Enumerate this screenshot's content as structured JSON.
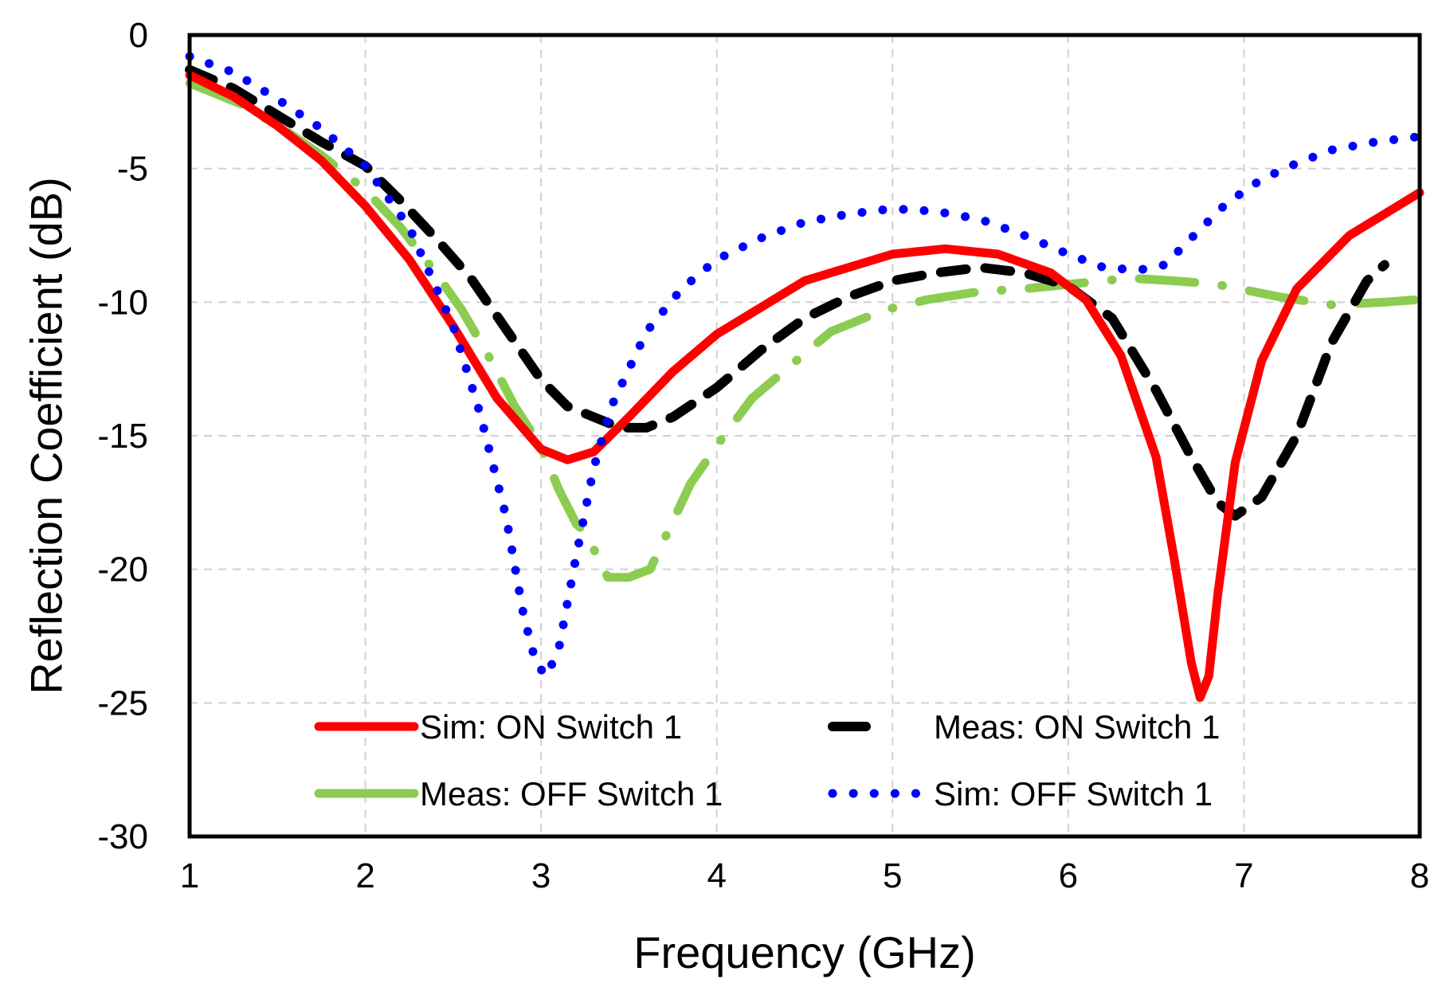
{
  "chart_data": {
    "type": "line",
    "xlabel": "Frequency (GHz)",
    "ylabel": "Reflection Coefficient (dB)",
    "xlim": [
      1,
      8
    ],
    "ylim": [
      -30,
      0
    ],
    "xticks": [
      1,
      2,
      3,
      4,
      5,
      6,
      7,
      8
    ],
    "yticks": [
      0,
      -5,
      -10,
      -15,
      -20,
      -25,
      -30
    ],
    "grid": true,
    "legend_position": "bottom-inside",
    "series": [
      {
        "name": "Sim: ON Switch 1",
        "color": "#ff0000",
        "style": "solid",
        "x": [
          1,
          1.25,
          1.5,
          1.75,
          2,
          2.25,
          2.5,
          2.75,
          3,
          3.15,
          3.3,
          3.5,
          3.75,
          4,
          4.5,
          5,
          5.3,
          5.6,
          5.9,
          6.1,
          6.3,
          6.5,
          6.6,
          6.7,
          6.75,
          6.8,
          6.85,
          6.95,
          7.1,
          7.3,
          7.6,
          8
        ],
        "y": [
          -1.5,
          -2.3,
          -3.4,
          -4.7,
          -6.4,
          -8.4,
          -10.9,
          -13.6,
          -15.5,
          -15.9,
          -15.6,
          -14.3,
          -12.6,
          -11.2,
          -9.2,
          -8.2,
          -8.0,
          -8.2,
          -8.9,
          -9.9,
          -12.0,
          -15.8,
          -19.5,
          -23.5,
          -24.8,
          -24.0,
          -21.0,
          -16.0,
          -12.2,
          -9.5,
          -7.5,
          -5.9
        ]
      },
      {
        "name": "Meas: ON Switch 1",
        "color": "#000000",
        "style": "dashed",
        "x": [
          1,
          1.25,
          1.5,
          1.75,
          2,
          2.2,
          2.4,
          2.6,
          2.8,
          3.0,
          3.15,
          3.3,
          3.45,
          3.6,
          3.75,
          4.0,
          4.25,
          4.5,
          4.75,
          5.0,
          5.25,
          5.5,
          5.75,
          6.0,
          6.25,
          6.5,
          6.7,
          6.85,
          6.95,
          7.1,
          7.3,
          7.5,
          7.7,
          7.8
        ],
        "y": [
          -1.3,
          -2.0,
          -3.0,
          -4.0,
          -4.9,
          -6.2,
          -7.6,
          -9.1,
          -11.0,
          -12.9,
          -13.9,
          -14.3,
          -14.7,
          -14.7,
          -14.3,
          -13.2,
          -11.8,
          -10.6,
          -9.8,
          -9.2,
          -8.9,
          -8.7,
          -8.9,
          -9.4,
          -10.6,
          -13.3,
          -15.8,
          -17.5,
          -18.0,
          -17.3,
          -15.0,
          -11.5,
          -9.2,
          -8.6
        ]
      },
      {
        "name": "Meas: OFF Switch 1",
        "color": "#8ccc50",
        "style": "dash-dot",
        "x": [
          1,
          1.3,
          1.55,
          1.75,
          2,
          2.2,
          2.4,
          2.55,
          2.7,
          2.85,
          3.0,
          3.1,
          3.2,
          3.25,
          3.38,
          3.5,
          3.62,
          3.75,
          3.85,
          4.03,
          4.2,
          4.45,
          4.65,
          4.95,
          5.2,
          5.5,
          5.75,
          6.05,
          6.35,
          6.6,
          6.8,
          6.9,
          7.2,
          7.5,
          7.8,
          8.0
        ],
        "y": [
          -1.8,
          -2.6,
          -3.6,
          -4.5,
          -5.8,
          -7.2,
          -8.9,
          -10.3,
          -12.0,
          -13.9,
          -15.4,
          -17.0,
          -18.3,
          -18.6,
          -20.3,
          -20.3,
          -20.0,
          -18.2,
          -16.8,
          -15.1,
          -13.6,
          -12.2,
          -11.1,
          -10.3,
          -9.9,
          -9.6,
          -9.5,
          -9.3,
          -9.1,
          -9.2,
          -9.3,
          -9.4,
          -9.8,
          -10.1,
          -10.0,
          -9.9
        ]
      },
      {
        "name": "Sim: OFF Switch 1",
        "color": "#0000ff",
        "style": "dotted",
        "x": [
          1,
          1.25,
          1.5,
          1.75,
          2,
          2.25,
          2.5,
          2.65,
          2.8,
          2.9,
          2.97,
          3.03,
          3.1,
          3.2,
          3.3,
          3.4,
          3.6,
          3.8,
          4.0,
          4.25,
          4.5,
          4.75,
          5.0,
          5.25,
          5.5,
          5.75,
          6.0,
          6.2,
          6.4,
          6.55,
          6.7,
          6.9,
          7.1,
          7.3,
          7.5,
          7.75,
          8.0
        ],
        "y": [
          -0.8,
          -1.4,
          -2.4,
          -3.5,
          -4.9,
          -7.2,
          -10.9,
          -14.1,
          -18.0,
          -21.7,
          -23.5,
          -24.0,
          -23.0,
          -19.5,
          -16.2,
          -13.9,
          -11.1,
          -9.5,
          -8.4,
          -7.6,
          -7.0,
          -6.7,
          -6.5,
          -6.6,
          -6.9,
          -7.5,
          -8.2,
          -8.7,
          -8.8,
          -8.6,
          -7.6,
          -6.3,
          -5.4,
          -4.8,
          -4.3,
          -4.0,
          -3.8
        ]
      }
    ]
  }
}
